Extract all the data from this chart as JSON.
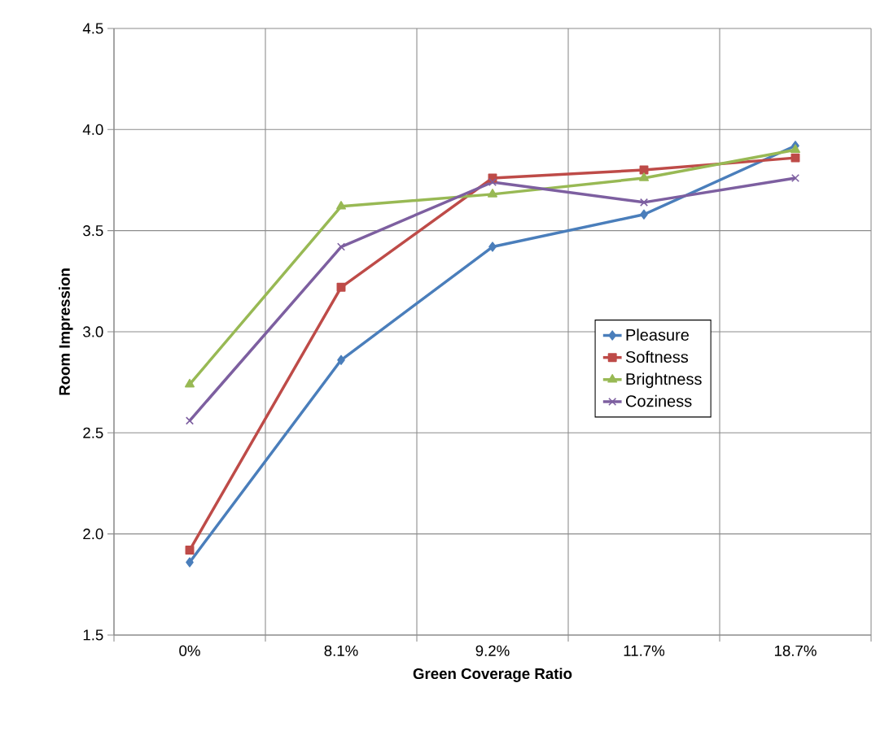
{
  "chart_data": {
    "type": "line",
    "xlabel": "Green Coverage Ratio",
    "ylabel": "Room Impression",
    "categories": [
      "0%",
      "8.1%",
      "9.2%",
      "11.7%",
      "18.7%"
    ],
    "series": [
      {
        "name": "Pleasure",
        "color": "#4a7ebb",
        "marker": "diamond",
        "values": [
          1.86,
          2.86,
          3.42,
          3.58,
          3.92
        ]
      },
      {
        "name": "Softness",
        "color": "#be4b48",
        "marker": "square",
        "values": [
          1.92,
          3.22,
          3.76,
          3.8,
          3.86
        ]
      },
      {
        "name": "Brightness",
        "color": "#98b954",
        "marker": "triangle",
        "values": [
          2.74,
          3.62,
          3.68,
          3.76,
          3.9
        ]
      },
      {
        "name": "Coziness",
        "color": "#7d5fa0",
        "marker": "cross",
        "values": [
          2.56,
          3.42,
          3.74,
          3.64,
          3.76
        ]
      }
    ],
    "ylim": [
      1.5,
      4.5
    ],
    "yticks": [
      1.5,
      {
        "value": 2,
        "label": "2.0"
      },
      2.5,
      {
        "value": 3,
        "label": "3.0"
      },
      3.5,
      {
        "value": 4,
        "label": "4.0"
      },
      4.5
    ],
    "grid": true,
    "legend": "right",
    "line_style": "solid"
  }
}
